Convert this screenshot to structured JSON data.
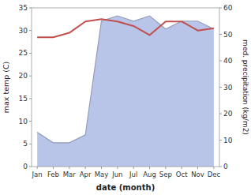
{
  "chart_data": {
    "type": "line",
    "categories": [
      "Jan",
      "Feb",
      "Mar",
      "Apr",
      "May",
      "Jun",
      "Jul",
      "Aug",
      "Sep",
      "Oct",
      "Nov",
      "Dec"
    ],
    "xlabel": "date (month)",
    "ylabel": "max temp (C)",
    "y2label": "med. precipitation (kg/m2)",
    "ylim": [
      0,
      35
    ],
    "yticks": [
      0,
      5,
      10,
      15,
      20,
      25,
      30,
      35
    ],
    "y2lim": [
      0,
      60
    ],
    "y2ticks": [
      0,
      10,
      20,
      30,
      40,
      50,
      60
    ],
    "grid": false,
    "series": [
      {
        "type": "area",
        "axis": "y2",
        "color": "#b8c4e8",
        "values": [
          13,
          9,
          9,
          12,
          55,
          57,
          55,
          57,
          52,
          55,
          55,
          52
        ]
      },
      {
        "type": "line",
        "color": "#c0504d",
        "values": [
          28.5,
          28.5,
          29.5,
          32.0,
          32.5,
          32.0,
          31.0,
          29.0,
          32.0,
          32.0,
          30.0,
          30.5
        ]
      }
    ]
  }
}
